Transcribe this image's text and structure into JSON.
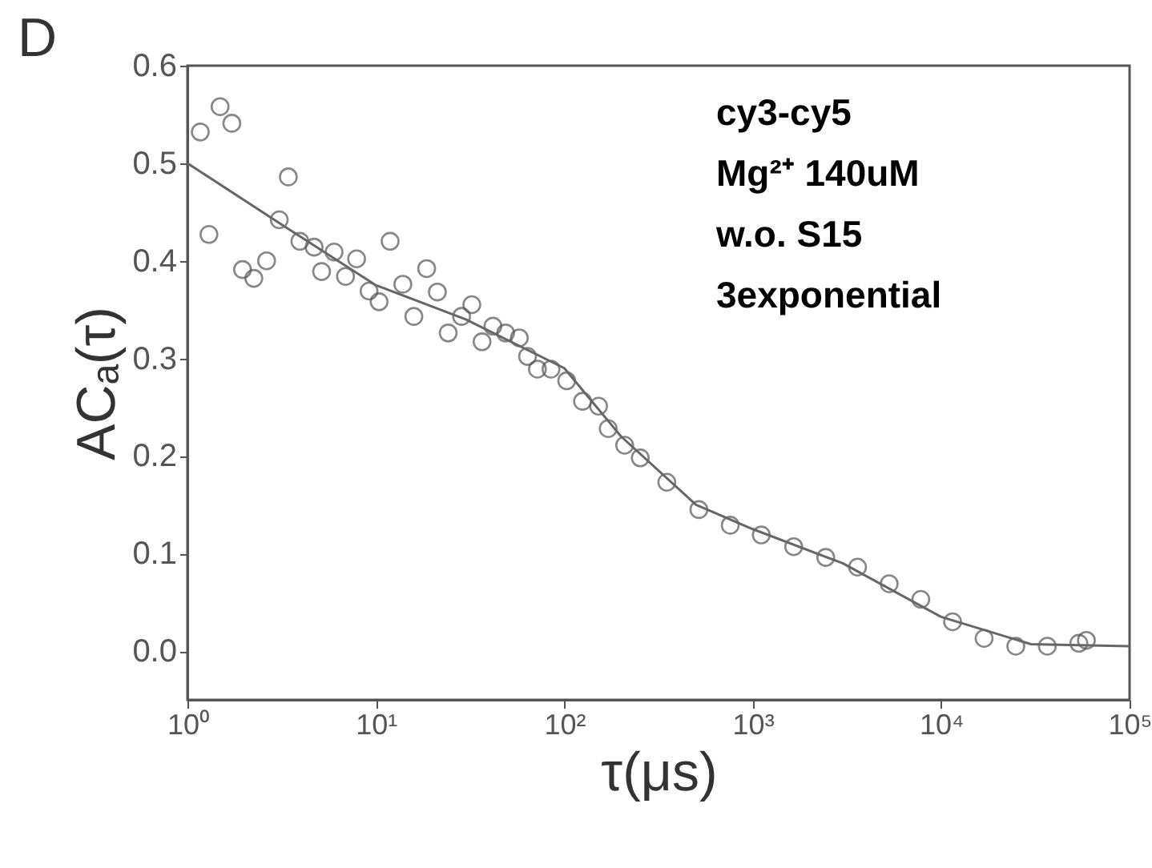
{
  "chart_data": {
    "type": "scatter",
    "title": "D",
    "xlabel": "τ(μs)",
    "ylabel": "ACₐ(τ)",
    "log": "x",
    "marker": "circle",
    "grid": false,
    "xlim": [
      1,
      100000
    ],
    "xticks": [
      {
        "value": 1,
        "label": "10⁰"
      },
      {
        "value": 10,
        "label": "10¹"
      },
      {
        "value": 100,
        "label": "10²"
      },
      {
        "value": 1000,
        "label": "10³"
      },
      {
        "value": 10000,
        "label": "10⁴"
      },
      {
        "value": 100000,
        "label": "10⁵"
      }
    ],
    "ylim": [
      -0.05,
      0.6
    ],
    "yticks": [
      {
        "value": 0,
        "label": "0.0"
      },
      0.1,
      0.2,
      0.3,
      0.4,
      0.5,
      0.6
    ],
    "annotations": [
      "cy3-cy5",
      "Mg²⁺ 140uM",
      "w.o. S15",
      "3exponential"
    ],
    "series": [
      {
        "color": "#555555",
        "x": [
          1.17,
          1.3,
          1.49,
          1.72,
          1.96,
          2.25,
          2.63,
          3.07,
          3.43,
          3.95,
          4.7,
          5.15,
          6.0,
          6.9,
          7.9,
          9.2,
          10.4,
          11.9,
          13.9,
          15.9,
          18.6,
          21.2,
          24.2,
          28.5,
          32.3,
          36.6,
          41.8,
          48.8,
          57.7,
          63.8,
          72,
          85,
          103,
          125,
          152,
          171,
          209,
          253,
          350,
          518,
          760,
          1110,
          1650,
          2440,
          3600,
          5300,
          7800,
          11500,
          16900,
          24900,
          36600,
          53800,
          59000
        ],
        "values": [
          0.532,
          0.427,
          0.558,
          0.541,
          0.391,
          0.382,
          0.4,
          0.442,
          0.486,
          0.42,
          0.414,
          0.389,
          0.409,
          0.384,
          0.402,
          0.369,
          0.358,
          0.42,
          0.376,
          0.343,
          0.392,
          0.368,
          0.326,
          0.343,
          0.355,
          0.317,
          0.333,
          0.326,
          0.321,
          0.302,
          0.289,
          0.289,
          0.277,
          0.256,
          0.251,
          0.228,
          0.211,
          0.198,
          0.173,
          0.145,
          0.129,
          0.119,
          0.107,
          0.096,
          0.086,
          0.069,
          0.053,
          0.03,
          0.013,
          0.005,
          0.005,
          0.008,
          0.011
        ]
      },
      {
        "type": "line",
        "marker": "none",
        "color": "#666666",
        "x": [
          1,
          3,
          10,
          30,
          100,
          200,
          500,
          1000,
          3000,
          10000,
          30000,
          100000
        ],
        "values": [
          0.5,
          0.44,
          0.375,
          0.34,
          0.29,
          0.22,
          0.15,
          0.125,
          0.09,
          0.035,
          0.007,
          0.005
        ]
      }
    ]
  }
}
